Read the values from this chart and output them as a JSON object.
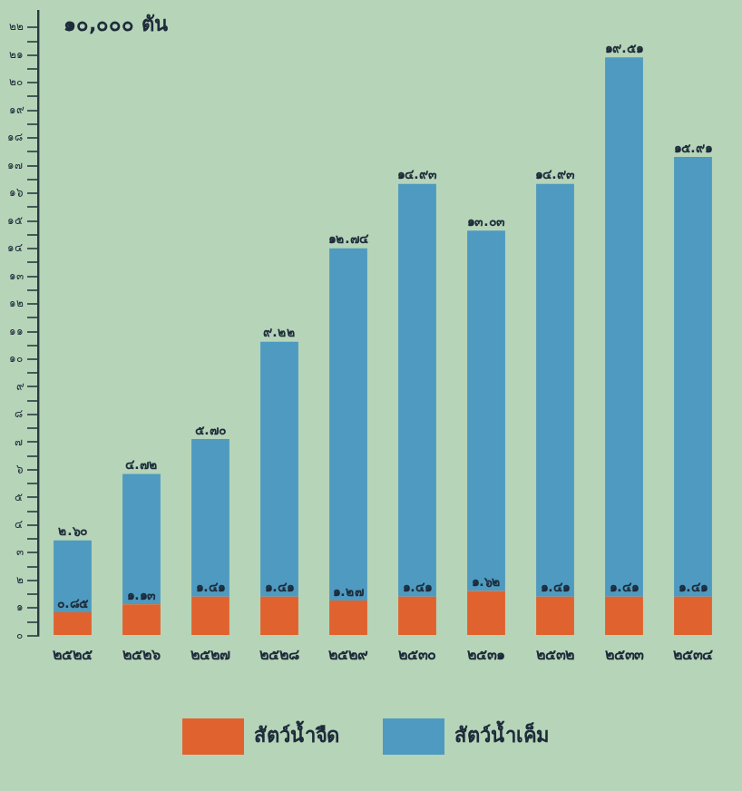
{
  "chart_data": {
    "type": "bar",
    "stacked": true,
    "ylabel": "๑๐,๐๐๐ ตัน",
    "categories": [
      "๒๕๒๕",
      "๒๕๒๖",
      "๒๕๒๗",
      "๒๕๒๘",
      "๒๕๒๙",
      "๒๕๓๐",
      "๒๕๓๑",
      "๒๕๓๒",
      "๒๕๓๓",
      "๒๕๓๔"
    ],
    "series": [
      {
        "name": "สัตว์น้ำจืด",
        "color": "#e0622e",
        "values": [
          0.85,
          1.13,
          1.41,
          1.41,
          1.27,
          1.41,
          1.62,
          1.41,
          1.41,
          1.41
        ],
        "value_labels": [
          "๐.๘๕",
          "๑.๑๓",
          "๑.๔๑",
          "๑.๔๑",
          "๑.๒๗",
          "๑.๔๑",
          "๑.๖๒",
          "๑.๔๑",
          "๑.๔๑",
          "๑.๔๑"
        ]
      },
      {
        "name": "สัตว์น้ำเค็ม",
        "color": "#4e9ac0",
        "values": [
          2.6,
          4.72,
          5.7,
          9.22,
          12.74,
          14.93,
          13.03,
          14.93,
          19.51,
          15.91
        ],
        "value_labels": [
          "๒.๖๐",
          "๔.๗๒",
          "๕.๗๐",
          "๙.๒๒",
          "๑๒.๗๔",
          "๑๔.๙๓",
          "๑๓.๐๓",
          "๑๔.๙๓",
          "๑๙.๕๑",
          "๑๕.๙๑"
        ]
      }
    ],
    "ylim": [
      0,
      22.6
    ],
    "yticks": [
      {
        "value": 0,
        "label": "๐"
      },
      {
        "value": 0.5,
        "label": null
      },
      {
        "value": 1,
        "label": "๑"
      },
      {
        "value": 1.5,
        "label": null
      },
      {
        "value": 2,
        "label": "๒"
      },
      {
        "value": 2.5,
        "label": null
      },
      {
        "value": 3,
        "label": "๓"
      },
      {
        "value": 3.5,
        "label": null
      },
      {
        "value": 4,
        "label": "๔"
      },
      {
        "value": 4.5,
        "label": null
      },
      {
        "value": 5,
        "label": "๕"
      },
      {
        "value": 5.5,
        "label": null
      },
      {
        "value": 6,
        "label": "๖"
      },
      {
        "value": 6.5,
        "label": null
      },
      {
        "value": 7,
        "label": "๗"
      },
      {
        "value": 7.5,
        "label": null
      },
      {
        "value": 8,
        "label": "๘"
      },
      {
        "value": 8.5,
        "label": null
      },
      {
        "value": 9,
        "label": "๙"
      },
      {
        "value": 9.5,
        "label": null
      },
      {
        "value": 10,
        "label": "๑๐"
      },
      {
        "value": 10.5,
        "label": null
      },
      {
        "value": 11,
        "label": "๑๑"
      },
      {
        "value": 11.5,
        "label": null
      },
      {
        "value": 12,
        "label": "๑๒"
      },
      {
        "value": 12.5,
        "label": null
      },
      {
        "value": 13,
        "label": "๑๓"
      },
      {
        "value": 13.5,
        "label": null
      },
      {
        "value": 14,
        "label": "๑๔"
      },
      {
        "value": 14.5,
        "label": null
      },
      {
        "value": 15,
        "label": "๑๕"
      },
      {
        "value": 15.5,
        "label": null
      },
      {
        "value": 16,
        "label": "๑๖"
      },
      {
        "value": 16.5,
        "label": null
      },
      {
        "value": 17,
        "label": "๑๗"
      },
      {
        "value": 17.5,
        "label": null
      },
      {
        "value": 18,
        "label": "๑๘"
      },
      {
        "value": 18.5,
        "label": null
      },
      {
        "value": 19,
        "label": "๑๙"
      },
      {
        "value": 19.5,
        "label": null
      },
      {
        "value": 20,
        "label": "๒๐"
      },
      {
        "value": 20.5,
        "label": null
      },
      {
        "value": 21,
        "label": "๒๑"
      },
      {
        "value": 21.5,
        "label": null
      },
      {
        "value": 22,
        "label": "๒๒"
      }
    ],
    "grid": false,
    "legend": "bottom"
  }
}
